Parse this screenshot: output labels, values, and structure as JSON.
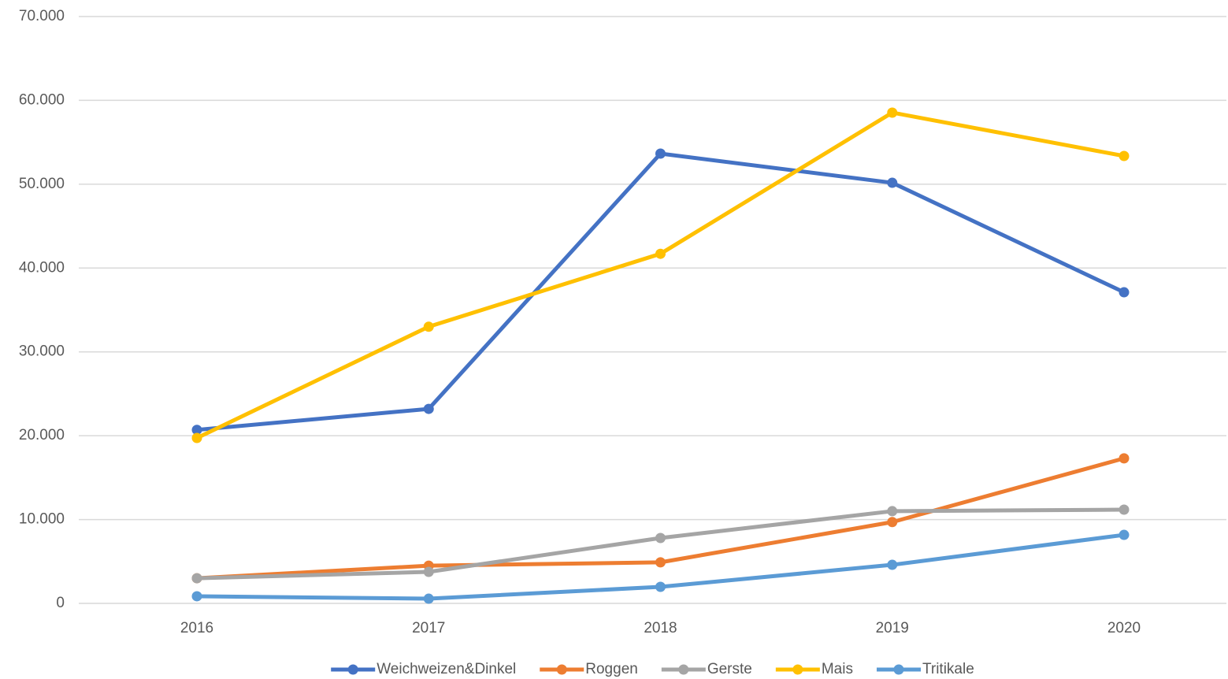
{
  "chart_data": {
    "type": "line",
    "categories": [
      "2016",
      "2017",
      "2018",
      "2019",
      "2020"
    ],
    "series": [
      {
        "name": "Weichweizen&Dinkel",
        "color": "#4472c4",
        "values": [
          20700,
          23200,
          53650,
          50170,
          37110
        ]
      },
      {
        "name": "Roggen",
        "color": "#ed7d31",
        "values": [
          3000,
          4500,
          4900,
          9700,
          17300
        ]
      },
      {
        "name": "Gerste",
        "color": "#a5a5a5",
        "values": [
          3000,
          3760,
          7800,
          11000,
          11180
        ]
      },
      {
        "name": "Mais",
        "color": "#ffc000",
        "values": [
          19730,
          33000,
          41700,
          58540,
          53370
        ]
      },
      {
        "name": "Tritikale",
        "color": "#5b9bd5",
        "values": [
          850,
          560,
          1970,
          4600,
          8170
        ]
      }
    ],
    "ylim": [
      0,
      70000
    ],
    "yticks": [
      0,
      {
        "value": 10000,
        "label": "10.000"
      },
      {
        "value": 20000,
        "label": "20.000"
      },
      {
        "value": 30000,
        "label": "30.000"
      },
      {
        "value": 40000,
        "label": "40.000"
      },
      {
        "value": 50000,
        "label": "50.000"
      },
      {
        "value": 60000,
        "label": "60.000"
      },
      {
        "value": 70000,
        "label": "70.000"
      }
    ],
    "grid": true,
    "legend": "bottom"
  }
}
